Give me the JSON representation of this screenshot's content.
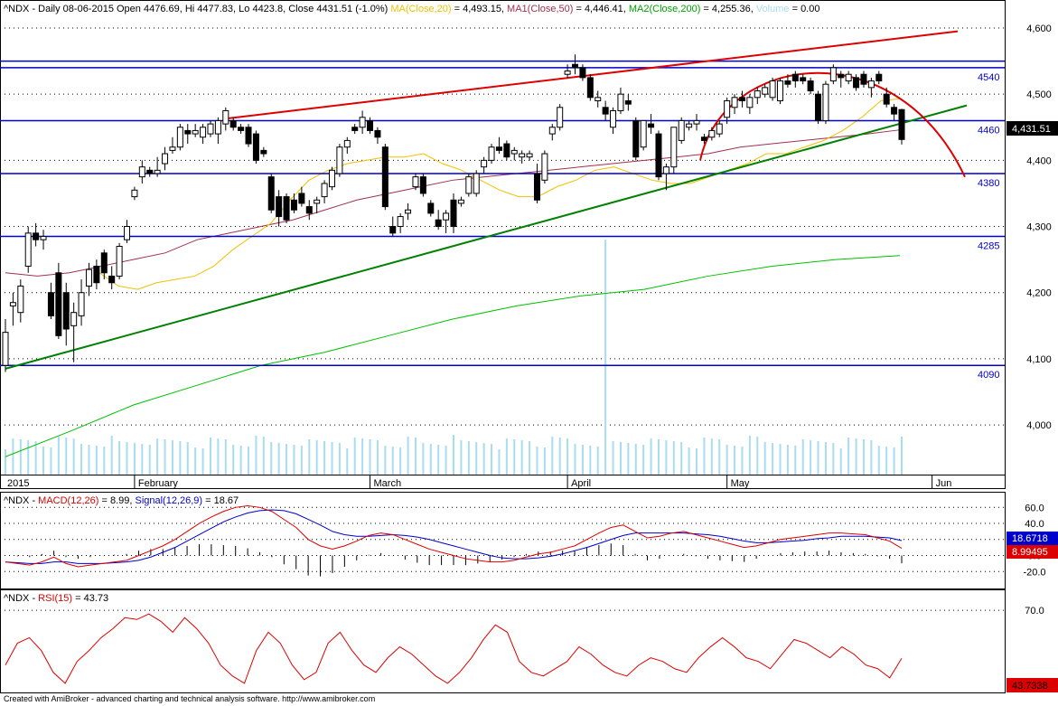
{
  "header": {
    "symbol": "^NDX",
    "ohlc": " - Daily 08-06-2015 Open 4476.69, Hi 4477.83, Lo 4423.8, Close 4431.51 (-1.0%) ",
    "ma20_label": "MA(Close,20)",
    "ma20_value": " = 4,493.15, ",
    "ma50_label": "MA1(Close,50)",
    "ma50_value": " = 4,446.41, ",
    "ma200_label": "MA2(Close,200)",
    "ma200_value": " = 4,255.36, ",
    "vol_label": "Volume",
    "vol_value": " = 0.00"
  },
  "macd_header": {
    "symbol": "^NDX - ",
    "macd_label": "MACD(12,26)",
    "macd_value": " = 8.99, ",
    "signal_label": "Signal(12,26,9)",
    "signal_value": " = 18.67"
  },
  "rsi_header": {
    "symbol": "^NDX - ",
    "rsi_label": "RSI(15)",
    "rsi_value": " = 43.73"
  },
  "badges": {
    "close": "4,431.51",
    "signal": "18.6718",
    "macd": "8.99495",
    "rsi": "43.7338"
  },
  "footer": "Created with AmiBroker - advanced charting and technical analysis software. http://www.amibroker.com",
  "colors": {
    "ma20": "#f0c000",
    "ma50": "#a03050",
    "ma200": "#00c000",
    "hline": "#0000cc",
    "trend_up": "#008000",
    "trend_res": "#dd0000",
    "volume": "#a8dcf0",
    "macd": "#dd0000",
    "signal": "#0000cc",
    "rsi": "#dd0000"
  },
  "chart_data": [
    {
      "type": "candlestick",
      "title": "^NDX Daily",
      "x_labels": [
        "2015",
        "February",
        "March",
        "April",
        "May",
        "Jun"
      ],
      "y_ticks": [
        "4,000",
        "4,100",
        "4,200",
        "4,300",
        "4,400",
        "4,500",
        "4,600"
      ],
      "ylim": [
        3925,
        4615
      ],
      "level_labels": [
        "4540",
        "4460",
        "4380",
        "4285",
        "4090"
      ],
      "levels": [
        4540,
        4460,
        4380,
        4285,
        4090
      ],
      "upper_resistance": 4550,
      "candles": [
        {
          "o": 4090,
          "h": 4160,
          "l": 4080,
          "c": 4140
        },
        {
          "o": 4180,
          "h": 4200,
          "l": 4150,
          "c": 4185
        },
        {
          "o": 4170,
          "h": 4220,
          "l": 4155,
          "c": 4210
        },
        {
          "o": 4240,
          "h": 4300,
          "l": 4230,
          "c": 4290
        },
        {
          "o": 4290,
          "h": 4305,
          "l": 4270,
          "c": 4280
        },
        {
          "o": 4280,
          "h": 4295,
          "l": 4265,
          "c": 4285
        },
        {
          "o": 4200,
          "h": 4215,
          "l": 4160,
          "c": 4165
        },
        {
          "o": 4230,
          "h": 4245,
          "l": 4130,
          "c": 4135
        },
        {
          "o": 4200,
          "h": 4215,
          "l": 4120,
          "c": 4145
        },
        {
          "o": 4150,
          "h": 4185,
          "l": 4095,
          "c": 4170
        },
        {
          "o": 4165,
          "h": 4220,
          "l": 4150,
          "c": 4200
        },
        {
          "o": 4210,
          "h": 4245,
          "l": 4195,
          "c": 4235
        },
        {
          "o": 4240,
          "h": 4250,
          "l": 4205,
          "c": 4215
        },
        {
          "o": 4260,
          "h": 4265,
          "l": 4220,
          "c": 4230
        },
        {
          "o": 4225,
          "h": 4240,
          "l": 4205,
          "c": 4215
        },
        {
          "o": 4225,
          "h": 4275,
          "l": 4220,
          "c": 4270
        },
        {
          "o": 4280,
          "h": 4310,
          "l": 4275,
          "c": 4300
        },
        {
          "o": 4345,
          "h": 4360,
          "l": 4340,
          "c": 4355
        },
        {
          "o": 4375,
          "h": 4400,
          "l": 4365,
          "c": 4390
        },
        {
          "o": 4385,
          "h": 4390,
          "l": 4375,
          "c": 4380
        },
        {
          "o": 4380,
          "h": 4405,
          "l": 4375,
          "c": 4385
        },
        {
          "o": 4395,
          "h": 4420,
          "l": 4385,
          "c": 4410
        },
        {
          "o": 4415,
          "h": 4435,
          "l": 4410,
          "c": 4420
        },
        {
          "o": 4420,
          "h": 4455,
          "l": 4415,
          "c": 4450
        },
        {
          "o": 4445,
          "h": 4455,
          "l": 4425,
          "c": 4440
        },
        {
          "o": 4440,
          "h": 4455,
          "l": 4435,
          "c": 4445
        },
        {
          "o": 4435,
          "h": 4455,
          "l": 4425,
          "c": 4450
        },
        {
          "o": 4440,
          "h": 4460,
          "l": 4435,
          "c": 4455
        },
        {
          "o": 4440,
          "h": 4465,
          "l": 4425,
          "c": 4460
        },
        {
          "o": 4455,
          "h": 4480,
          "l": 4445,
          "c": 4475
        },
        {
          "o": 4460,
          "h": 4465,
          "l": 4445,
          "c": 4450
        },
        {
          "o": 4450,
          "h": 4455,
          "l": 4440,
          "c": 4445
        },
        {
          "o": 4450,
          "h": 4455,
          "l": 4420,
          "c": 4425
        },
        {
          "o": 4440,
          "h": 4445,
          "l": 4395,
          "c": 4400
        },
        {
          "o": 4415,
          "h": 4420,
          "l": 4405,
          "c": 4410
        },
        {
          "o": 4375,
          "h": 4380,
          "l": 4320,
          "c": 4325
        },
        {
          "o": 4345,
          "h": 4355,
          "l": 4300,
          "c": 4315
        },
        {
          "o": 4345,
          "h": 4350,
          "l": 4305,
          "c": 4310
        },
        {
          "o": 4340,
          "h": 4350,
          "l": 4320,
          "c": 4325
        },
        {
          "o": 4350,
          "h": 4360,
          "l": 4330,
          "c": 4335
        },
        {
          "o": 4330,
          "h": 4340,
          "l": 4310,
          "c": 4320
        },
        {
          "o": 4335,
          "h": 4345,
          "l": 4320,
          "c": 4340
        },
        {
          "o": 4345,
          "h": 4370,
          "l": 4335,
          "c": 4365
        },
        {
          "o": 4360,
          "h": 4390,
          "l": 4355,
          "c": 4385
        },
        {
          "o": 4380,
          "h": 4425,
          "l": 4375,
          "c": 4420
        },
        {
          "o": 4420,
          "h": 4435,
          "l": 4410,
          "c": 4430
        },
        {
          "o": 4450,
          "h": 4455,
          "l": 4440,
          "c": 4445
        },
        {
          "o": 4450,
          "h": 4475,
          "l": 4440,
          "c": 4465
        },
        {
          "o": 4460,
          "h": 4465,
          "l": 4440,
          "c": 4445
        },
        {
          "o": 4445,
          "h": 4450,
          "l": 4425,
          "c": 4435
        },
        {
          "o": 4420,
          "h": 4425,
          "l": 4325,
          "c": 4330
        },
        {
          "o": 4300,
          "h": 4315,
          "l": 4285,
          "c": 4290
        },
        {
          "o": 4300,
          "h": 4320,
          "l": 4290,
          "c": 4315
        },
        {
          "o": 4320,
          "h": 4335,
          "l": 4310,
          "c": 4325
        },
        {
          "o": 4360,
          "h": 4380,
          "l": 4355,
          "c": 4375
        },
        {
          "o": 4375,
          "h": 4380,
          "l": 4345,
          "c": 4350
        },
        {
          "o": 4335,
          "h": 4340,
          "l": 4315,
          "c": 4320
        },
        {
          "o": 4310,
          "h": 4325,
          "l": 4295,
          "c": 4300
        },
        {
          "o": 4310,
          "h": 4325,
          "l": 4290,
          "c": 4320
        },
        {
          "o": 4340,
          "h": 4350,
          "l": 4290,
          "c": 4300
        },
        {
          "o": 4335,
          "h": 4345,
          "l": 4330,
          "c": 4340
        },
        {
          "o": 4350,
          "h": 4380,
          "l": 4345,
          "c": 4375
        },
        {
          "o": 4350,
          "h": 4385,
          "l": 4345,
          "c": 4380
        },
        {
          "o": 4390,
          "h": 4405,
          "l": 4380,
          "c": 4400
        },
        {
          "o": 4400,
          "h": 4425,
          "l": 4395,
          "c": 4420
        },
        {
          "o": 4420,
          "h": 4435,
          "l": 4410,
          "c": 4415
        },
        {
          "o": 4425,
          "h": 4430,
          "l": 4400,
          "c": 4405
        },
        {
          "o": 4410,
          "h": 4420,
          "l": 4400,
          "c": 4415
        },
        {
          "o": 4405,
          "h": 4415,
          "l": 4395,
          "c": 4410
        },
        {
          "o": 4405,
          "h": 4415,
          "l": 4400,
          "c": 4410
        },
        {
          "o": 4380,
          "h": 4395,
          "l": 4335,
          "c": 4340
        },
        {
          "o": 4370,
          "h": 4415,
          "l": 4365,
          "c": 4410
        },
        {
          "o": 4440,
          "h": 4455,
          "l": 4430,
          "c": 4450
        },
        {
          "o": 4450,
          "h": 4485,
          "l": 4445,
          "c": 4480
        },
        {
          "o": 4530,
          "h": 4545,
          "l": 4525,
          "c": 4535
        },
        {
          "o": 4545,
          "h": 4560,
          "l": 4530,
          "c": 4540
        },
        {
          "o": 4540,
          "h": 4545,
          "l": 4520,
          "c": 4525
        },
        {
          "o": 4525,
          "h": 4530,
          "l": 4490,
          "c": 4495
        },
        {
          "o": 4490,
          "h": 4505,
          "l": 4480,
          "c": 4495
        },
        {
          "o": 4480,
          "h": 4490,
          "l": 4460,
          "c": 4470
        },
        {
          "o": 4450,
          "h": 4480,
          "l": 4440,
          "c": 4475
        },
        {
          "o": 4475,
          "h": 4510,
          "l": 4470,
          "c": 4500
        },
        {
          "o": 4490,
          "h": 4500,
          "l": 4475,
          "c": 4485
        },
        {
          "o": 4460,
          "h": 4465,
          "l": 4400,
          "c": 4405
        },
        {
          "o": 4420,
          "h": 4460,
          "l": 4415,
          "c": 4460
        },
        {
          "o": 4455,
          "h": 4470,
          "l": 4440,
          "c": 4450
        },
        {
          "o": 4440,
          "h": 4445,
          "l": 4370,
          "c": 4375
        },
        {
          "o": 4380,
          "h": 4395,
          "l": 4355,
          "c": 4390
        },
        {
          "o": 4390,
          "h": 4450,
          "l": 4380,
          "c": 4450
        },
        {
          "o": 4430,
          "h": 4465,
          "l": 4425,
          "c": 4460
        },
        {
          "o": 4450,
          "h": 4460,
          "l": 4445,
          "c": 4455
        },
        {
          "o": 4455,
          "h": 4470,
          "l": 4445,
          "c": 4460
        },
        {
          "o": 4435,
          "h": 4440,
          "l": 4425,
          "c": 4430
        },
        {
          "o": 4435,
          "h": 4450,
          "l": 4430,
          "c": 4445
        },
        {
          "o": 4440,
          "h": 4460,
          "l": 4435,
          "c": 4455
        },
        {
          "o": 4465,
          "h": 4495,
          "l": 4455,
          "c": 4490
        },
        {
          "o": 4480,
          "h": 4500,
          "l": 4470,
          "c": 4495
        },
        {
          "o": 4495,
          "h": 4505,
          "l": 4480,
          "c": 4490
        },
        {
          "o": 4480,
          "h": 4500,
          "l": 4470,
          "c": 4495
        },
        {
          "o": 4495,
          "h": 4510,
          "l": 4485,
          "c": 4505
        },
        {
          "o": 4500,
          "h": 4515,
          "l": 4495,
          "c": 4510
        },
        {
          "o": 4495,
          "h": 4525,
          "l": 4490,
          "c": 4520
        },
        {
          "o": 4490,
          "h": 4525,
          "l": 4485,
          "c": 4520
        },
        {
          "o": 4520,
          "h": 4530,
          "l": 4510,
          "c": 4515
        },
        {
          "o": 4530,
          "h": 4535,
          "l": 4510,
          "c": 4520
        },
        {
          "o": 4525,
          "h": 4530,
          "l": 4515,
          "c": 4520
        },
        {
          "o": 4520,
          "h": 4525,
          "l": 4500,
          "c": 4505
        },
        {
          "o": 4500,
          "h": 4505,
          "l": 4455,
          "c": 4460
        },
        {
          "o": 4460,
          "h": 4520,
          "l": 4455,
          "c": 4515
        },
        {
          "o": 4520,
          "h": 4545,
          "l": 4515,
          "c": 4540
        },
        {
          "o": 4530,
          "h": 4535,
          "l": 4510,
          "c": 4525
        },
        {
          "o": 4520,
          "h": 4535,
          "l": 4515,
          "c": 4530
        },
        {
          "o": 4525,
          "h": 4530,
          "l": 4505,
          "c": 4510
        },
        {
          "o": 4530,
          "h": 4535,
          "l": 4510,
          "c": 4515
        },
        {
          "o": 4510,
          "h": 4525,
          "l": 4495,
          "c": 4520
        },
        {
          "o": 4530,
          "h": 4535,
          "l": 4515,
          "c": 4520
        },
        {
          "o": 4500,
          "h": 4510,
          "l": 4480,
          "c": 4485
        },
        {
          "o": 4480,
          "h": 4485,
          "l": 4460,
          "c": 4470
        },
        {
          "o": 4476.69,
          "h": 4477.83,
          "l": 4423.8,
          "c": 4431.51
        }
      ],
      "ma20": [
        4230,
        4210,
        4205,
        4215,
        4220,
        4225,
        4240,
        4265,
        4285,
        4305,
        4340,
        4370,
        4385,
        4395,
        4400,
        4405,
        4405,
        4410,
        4395,
        4385,
        4370,
        4355,
        4345,
        4345,
        4360,
        4370,
        4385,
        4390,
        4380,
        4370,
        4365,
        4365,
        4375,
        4385,
        4395,
        4410,
        4410,
        4420,
        4430,
        4445,
        4465,
        4490,
        4493
      ],
      "ma50": [
        4230,
        4225,
        4230,
        4240,
        4250,
        4260,
        4280,
        4290,
        4300,
        4310,
        4325,
        4340,
        4350,
        4360,
        4370,
        4375,
        4380,
        4385,
        4390,
        4395,
        4400,
        4405,
        4410,
        4420,
        4425,
        4430,
        4435,
        4440,
        4446
      ],
      "ma200": [
        3952,
        3990,
        4030,
        4060,
        4090,
        4110,
        4135,
        4160,
        4180,
        4195,
        4205,
        4225,
        4240,
        4250,
        4256
      ],
      "volume_max": 1,
      "volume_spike_index": 79
    },
    {
      "type": "line",
      "title": "MACD(12,26) / Signal(12,26,9)",
      "y_ticks": [
        "60.0",
        "40.0",
        "20.0",
        "0.0",
        "-20.0"
      ],
      "ylim": [
        -40,
        75
      ],
      "series": [
        {
          "name": "MACD(12,26)",
          "values": [
            -8,
            -10,
            -12,
            -8,
            -2,
            -10,
            -14,
            -12,
            -10,
            -8,
            -6,
            0,
            6,
            12,
            20,
            30,
            40,
            48,
            55,
            60,
            62,
            60,
            55,
            45,
            35,
            20,
            12,
            8,
            12,
            18,
            25,
            28,
            26,
            20,
            14,
            8,
            4,
            0,
            -4,
            -6,
            -8,
            -8,
            -6,
            -2,
            2,
            4,
            8,
            12,
            20,
            28,
            35,
            38,
            30,
            22,
            24,
            28,
            30,
            26,
            22,
            18,
            14,
            10,
            12,
            16,
            20,
            22,
            24,
            26,
            28,
            28,
            27,
            26,
            22,
            18,
            8.99
          ]
        },
        {
          "name": "Signal(12,26,9)",
          "values": [
            -8,
            -9,
            -10,
            -10,
            -8,
            -8,
            -10,
            -10,
            -10,
            -9,
            -8,
            -6,
            -2,
            4,
            10,
            18,
            26,
            34,
            42,
            48,
            53,
            56,
            57,
            56,
            52,
            45,
            38,
            30,
            26,
            24,
            24,
            25,
            26,
            25,
            23,
            20,
            16,
            12,
            8,
            4,
            0,
            -3,
            -4,
            -4,
            -3,
            -1,
            2,
            6,
            10,
            15,
            20,
            25,
            28,
            28,
            28,
            28,
            28,
            27,
            26,
            24,
            21,
            18,
            16,
            16,
            17,
            18,
            19,
            21,
            22,
            24,
            24,
            24,
            23,
            22,
            18.67
          ]
        }
      ]
    },
    {
      "type": "line",
      "title": "RSI(15)",
      "y_ticks": [
        "70.0"
      ],
      "ylim": [
        25,
        80
      ],
      "series": [
        {
          "name": "RSI(15)",
          "values": [
            40,
            52,
            55,
            48,
            36,
            30,
            42,
            48,
            55,
            60,
            66,
            65,
            68,
            64,
            58,
            66,
            60,
            52,
            40,
            34,
            30,
            48,
            58,
            52,
            40,
            32,
            36,
            52,
            58,
            48,
            40,
            36,
            44,
            50,
            46,
            40,
            34,
            30,
            36,
            44,
            54,
            62,
            58,
            42,
            36,
            34,
            38,
            42,
            50,
            46,
            40,
            36,
            34,
            40,
            44,
            42,
            38,
            36,
            44,
            50,
            55,
            50,
            44,
            42,
            38,
            46,
            54,
            52,
            48,
            44,
            50,
            46,
            40,
            38,
            33,
            43.73
          ]
        }
      ]
    }
  ]
}
